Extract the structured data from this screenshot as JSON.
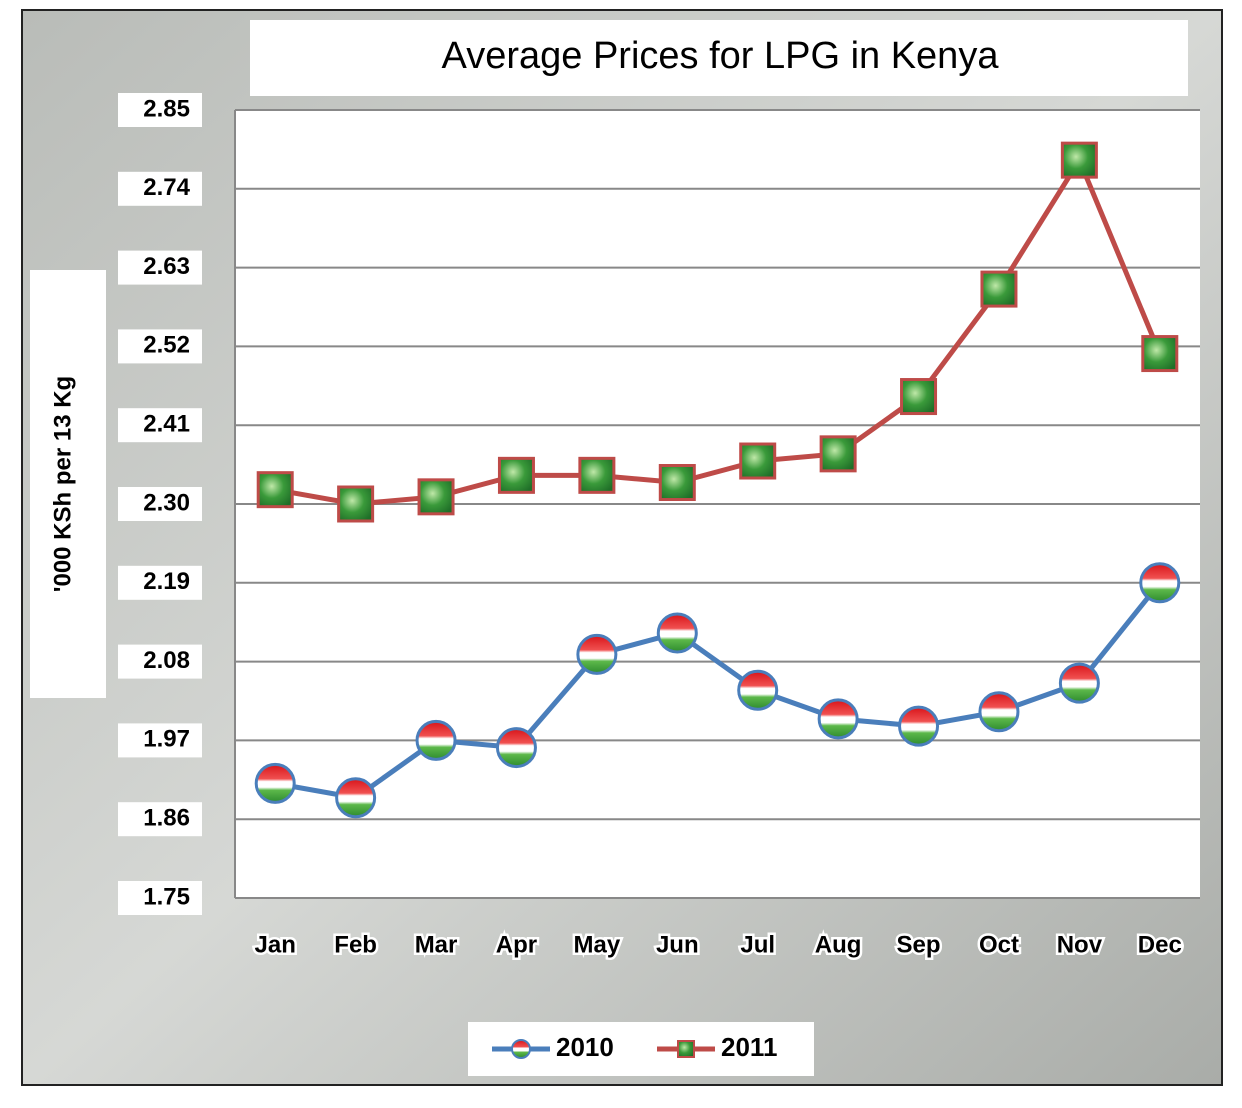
{
  "chart_data": {
    "type": "line",
    "title": "Average Prices for LPG in Kenya",
    "y_label": "'000 KSh per 13 Kg",
    "categories": [
      "Jan",
      "Feb",
      "Mar",
      "Apr",
      "May",
      "Jun",
      "Jul",
      "Aug",
      "Sep",
      "Oct",
      "Nov",
      "Dec"
    ],
    "series": [
      {
        "name": "2010",
        "color": "#4a7ebb",
        "values": [
          1.91,
          1.89,
          1.97,
          1.96,
          2.09,
          2.12,
          2.04,
          2.0,
          1.99,
          2.01,
          2.05,
          2.19
        ]
      },
      {
        "name": "2011",
        "color": "#be4b48",
        "values": [
          2.32,
          2.3,
          2.31,
          2.34,
          2.34,
          2.33,
          2.36,
          2.37,
          2.45,
          2.6,
          2.78,
          2.51
        ]
      }
    ],
    "ylim": [
      1.75,
      2.85
    ],
    "yticks": [
      1.75,
      1.86,
      1.97,
      2.08,
      2.19,
      {
        "value": 2.3,
        "label": "2.30"
      },
      2.41,
      2.52,
      2.63,
      2.74,
      2.85
    ],
    "grid": true,
    "legend": "bottom"
  }
}
